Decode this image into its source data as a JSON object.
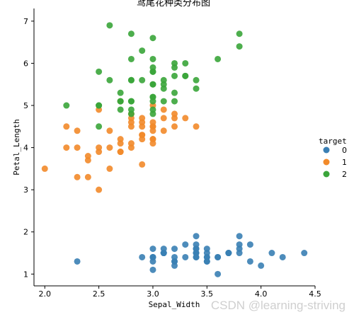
{
  "chart_data": {
    "type": "scatter",
    "title": "鸢尾花种类分布图",
    "xlabel": "Sepal_Width",
    "ylabel": "Petal_Length",
    "xlim": [
      1.9,
      4.5
    ],
    "ylim": [
      0.72,
      7.3
    ],
    "xticks": [
      "2.0",
      "2.5",
      "3.0",
      "3.5",
      "4.0",
      "4.5"
    ],
    "yticks": [
      "1",
      "2",
      "3",
      "4",
      "5",
      "6",
      "7"
    ],
    "legend": {
      "title": "target",
      "position": "right-center"
    },
    "colors": [
      "#3a7fb4",
      "#f28a2a",
      "#3aa53a"
    ],
    "series": [
      {
        "name": "0",
        "points": [
          [
            3.5,
            1.4
          ],
          [
            3.0,
            1.4
          ],
          [
            3.2,
            1.3
          ],
          [
            3.1,
            1.5
          ],
          [
            3.6,
            1.4
          ],
          [
            3.9,
            1.7
          ],
          [
            3.4,
            1.4
          ],
          [
            3.4,
            1.5
          ],
          [
            2.9,
            1.4
          ],
          [
            3.1,
            1.5
          ],
          [
            3.7,
            1.5
          ],
          [
            3.4,
            1.6
          ],
          [
            3.0,
            1.4
          ],
          [
            3.0,
            1.1
          ],
          [
            4.0,
            1.2
          ],
          [
            4.4,
            1.5
          ],
          [
            3.9,
            1.3
          ],
          [
            3.5,
            1.4
          ],
          [
            3.8,
            1.7
          ],
          [
            3.8,
            1.5
          ],
          [
            3.4,
            1.7
          ],
          [
            3.7,
            1.5
          ],
          [
            3.6,
            1.0
          ],
          [
            3.3,
            1.7
          ],
          [
            3.4,
            1.9
          ],
          [
            3.0,
            1.6
          ],
          [
            3.4,
            1.6
          ],
          [
            3.5,
            1.5
          ],
          [
            3.4,
            1.4
          ],
          [
            3.2,
            1.6
          ],
          [
            3.1,
            1.6
          ],
          [
            3.4,
            1.5
          ],
          [
            4.1,
            1.5
          ],
          [
            4.2,
            1.4
          ],
          [
            3.1,
            1.5
          ],
          [
            3.2,
            1.2
          ],
          [
            3.5,
            1.3
          ],
          [
            3.6,
            1.4
          ],
          [
            3.0,
            1.3
          ],
          [
            3.4,
            1.5
          ],
          [
            3.5,
            1.3
          ],
          [
            2.3,
            1.3
          ],
          [
            3.2,
            1.3
          ],
          [
            3.5,
            1.6
          ],
          [
            3.8,
            1.9
          ],
          [
            3.0,
            1.4
          ],
          [
            3.8,
            1.6
          ],
          [
            3.2,
            1.4
          ],
          [
            3.7,
            1.5
          ],
          [
            3.3,
            1.4
          ]
        ]
      },
      {
        "name": "1",
        "points": [
          [
            3.2,
            4.7
          ],
          [
            3.2,
            4.5
          ],
          [
            3.1,
            4.9
          ],
          [
            2.3,
            4.0
          ],
          [
            2.8,
            4.6
          ],
          [
            2.8,
            4.5
          ],
          [
            3.3,
            4.7
          ],
          [
            2.4,
            3.3
          ],
          [
            2.9,
            4.6
          ],
          [
            2.7,
            3.9
          ],
          [
            2.0,
            3.5
          ],
          [
            3.0,
            4.2
          ],
          [
            2.2,
            4.0
          ],
          [
            2.9,
            4.7
          ],
          [
            2.9,
            3.6
          ],
          [
            3.1,
            4.4
          ],
          [
            3.0,
            4.5
          ],
          [
            2.7,
            4.1
          ],
          [
            2.2,
            4.5
          ],
          [
            2.5,
            3.9
          ],
          [
            3.2,
            4.8
          ],
          [
            2.8,
            4.0
          ],
          [
            2.5,
            4.9
          ],
          [
            2.8,
            4.7
          ],
          [
            2.9,
            4.3
          ],
          [
            3.0,
            4.4
          ],
          [
            2.8,
            4.8
          ],
          [
            3.0,
            5.0
          ],
          [
            2.9,
            4.5
          ],
          [
            2.6,
            3.5
          ],
          [
            2.4,
            3.8
          ],
          [
            2.4,
            3.7
          ],
          [
            2.7,
            3.9
          ],
          [
            2.7,
            5.1
          ],
          [
            3.0,
            4.5
          ],
          [
            3.4,
            4.5
          ],
          [
            3.1,
            4.7
          ],
          [
            2.3,
            4.4
          ],
          [
            3.0,
            4.1
          ],
          [
            2.5,
            4.0
          ],
          [
            2.6,
            4.4
          ],
          [
            3.0,
            4.6
          ],
          [
            2.6,
            4.0
          ],
          [
            2.3,
            3.3
          ],
          [
            2.7,
            4.2
          ],
          [
            3.0,
            4.2
          ],
          [
            2.9,
            4.2
          ],
          [
            2.9,
            4.3
          ],
          [
            2.5,
            3.0
          ],
          [
            2.8,
            4.1
          ]
        ]
      },
      {
        "name": "2",
        "points": [
          [
            3.3,
            6.0
          ],
          [
            2.7,
            5.1
          ],
          [
            3.0,
            5.9
          ],
          [
            2.9,
            5.6
          ],
          [
            3.0,
            5.8
          ],
          [
            3.0,
            6.6
          ],
          [
            2.5,
            4.5
          ],
          [
            2.9,
            6.3
          ],
          [
            2.5,
            5.8
          ],
          [
            3.6,
            6.1
          ],
          [
            3.2,
            5.1
          ],
          [
            2.7,
            5.3
          ],
          [
            3.0,
            5.5
          ],
          [
            2.5,
            5.0
          ],
          [
            2.8,
            5.1
          ],
          [
            3.2,
            5.3
          ],
          [
            3.0,
            5.5
          ],
          [
            3.8,
            6.7
          ],
          [
            2.6,
            6.9
          ],
          [
            2.2,
            5.0
          ],
          [
            3.2,
            5.7
          ],
          [
            2.8,
            4.9
          ],
          [
            2.8,
            6.7
          ],
          [
            2.7,
            4.9
          ],
          [
            3.3,
            5.7
          ],
          [
            3.2,
            6.0
          ],
          [
            2.8,
            4.8
          ],
          [
            3.0,
            4.9
          ],
          [
            2.8,
            5.6
          ],
          [
            3.0,
            5.8
          ],
          [
            2.8,
            6.1
          ],
          [
            3.8,
            6.4
          ],
          [
            2.8,
            5.6
          ],
          [
            2.8,
            5.1
          ],
          [
            2.6,
            5.6
          ],
          [
            3.0,
            6.1
          ],
          [
            3.4,
            5.6
          ],
          [
            3.1,
            5.5
          ],
          [
            3.0,
            4.8
          ],
          [
            3.1,
            5.4
          ],
          [
            3.1,
            5.6
          ],
          [
            3.1,
            5.1
          ],
          [
            2.7,
            5.1
          ],
          [
            3.2,
            5.9
          ],
          [
            3.3,
            5.7
          ],
          [
            3.0,
            5.2
          ],
          [
            2.5,
            5.0
          ],
          [
            3.0,
            5.2
          ],
          [
            3.4,
            5.4
          ],
          [
            3.0,
            5.1
          ]
        ]
      }
    ]
  },
  "watermark": "CSDN @learning-striving"
}
